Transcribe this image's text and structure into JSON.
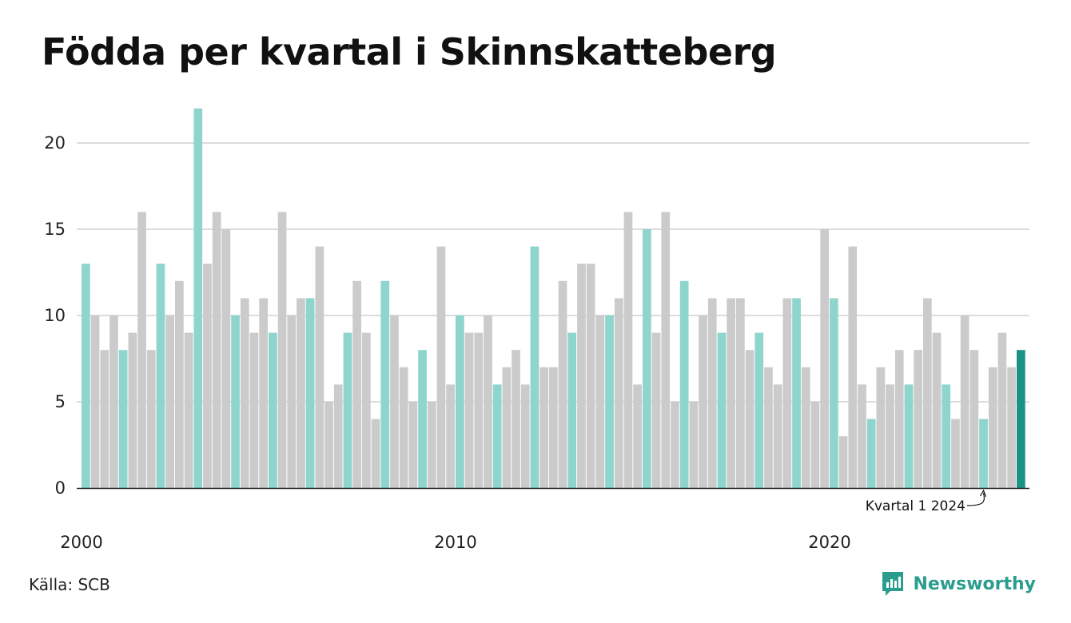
{
  "title": "Födda per kvartal i Skinnskatteberg",
  "source": "Källa: SCB",
  "brand": {
    "name": "Newsworthy",
    "icon": "newsworthy-logo-icon"
  },
  "colors": {
    "highlight": "#8dd5cd",
    "other": "#cbcbcb",
    "latest": "#1a9385",
    "grid": "#dcdcdc",
    "axis": "#222222"
  },
  "chart_data": {
    "type": "bar",
    "title": "Födda per kvartal i Skinnskatteberg",
    "xlabel": "",
    "ylabel": "",
    "ylim": [
      0,
      22
    ],
    "yticks": [
      0,
      5,
      10,
      15,
      20
    ],
    "xticks": [
      {
        "label": "2000",
        "year": 2000
      },
      {
        "label": "2010",
        "year": 2010
      },
      {
        "label": "2020",
        "year": 2020
      }
    ],
    "grid": true,
    "start": {
      "year": 2000,
      "quarter": 1
    },
    "highlight_quarter": 1,
    "annotation": "Kvartal 1 2024",
    "values": [
      13,
      10,
      8,
      10,
      8,
      9,
      16,
      8,
      13,
      10,
      12,
      9,
      22,
      13,
      16,
      15,
      10,
      11,
      9,
      11,
      9,
      16,
      10,
      11,
      11,
      14,
      5,
      6,
      9,
      12,
      9,
      4,
      12,
      10,
      7,
      5,
      8,
      5,
      14,
      6,
      10,
      9,
      9,
      10,
      6,
      7,
      8,
      6,
      14,
      7,
      7,
      12,
      9,
      13,
      13,
      10,
      10,
      11,
      16,
      6,
      15,
      9,
      16,
      5,
      12,
      5,
      10,
      11,
      9,
      11,
      11,
      8,
      9,
      7,
      6,
      11,
      11,
      7,
      5,
      15,
      11,
      3,
      14,
      6,
      4,
      7,
      6,
      8,
      6,
      8,
      11,
      9,
      6,
      4,
      10,
      8,
      4,
      7,
      9,
      7,
      8
    ]
  }
}
